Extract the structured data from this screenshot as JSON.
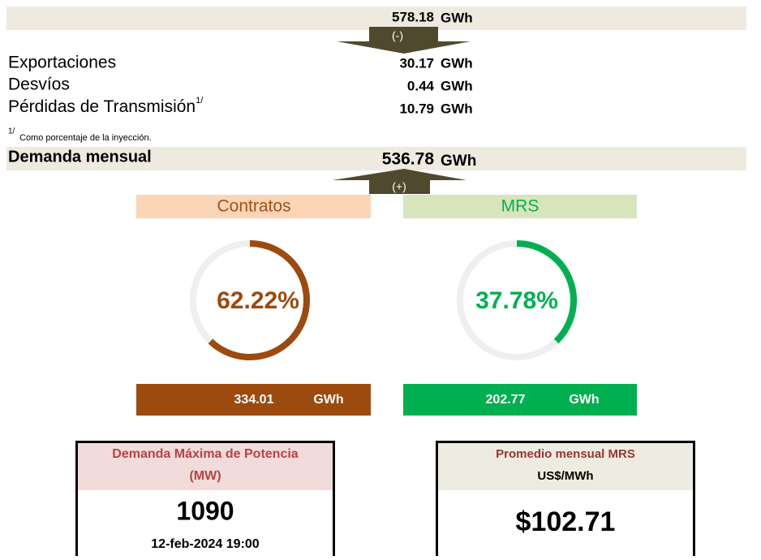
{
  "injection": {
    "value": "578.18",
    "unit": "GWh",
    "arrow": "(-)"
  },
  "losses": [
    {
      "label": "Exportaciones",
      "value": "30.17",
      "unit": "GWh"
    },
    {
      "label": "Desvíos",
      "value": "0.44",
      "unit": "GWh"
    },
    {
      "label": "Pérdidas de Transmisión",
      "note": "1/",
      "value": "10.79",
      "unit": "GWh"
    }
  ],
  "footnote": {
    "mark": "1/",
    "text": "Como porcentaje de la inyección."
  },
  "demand": {
    "label": "Demanda mensual",
    "value": "536.78",
    "unit": "GWh",
    "arrow": "(+)"
  },
  "contracts": {
    "title": "Contratos",
    "share": {
      "value": 62.22,
      "label": "62.22%"
    },
    "energy": "334.01",
    "unit": "GWh"
  },
  "mrs": {
    "title": "MRS",
    "share": {
      "value": 37.78,
      "label": "37.78%"
    },
    "energy": "202.77",
    "unit": "GWh"
  },
  "max_demand": {
    "title": "Demanda Máxima de Potencia",
    "subtitle": "(MW)",
    "value": "1090",
    "date": "12-feb-2024 19:00"
  },
  "mrs_price": {
    "title": "Promedio mensual MRS",
    "subtitle": "US$/MWh",
    "value": "$102.71"
  }
}
